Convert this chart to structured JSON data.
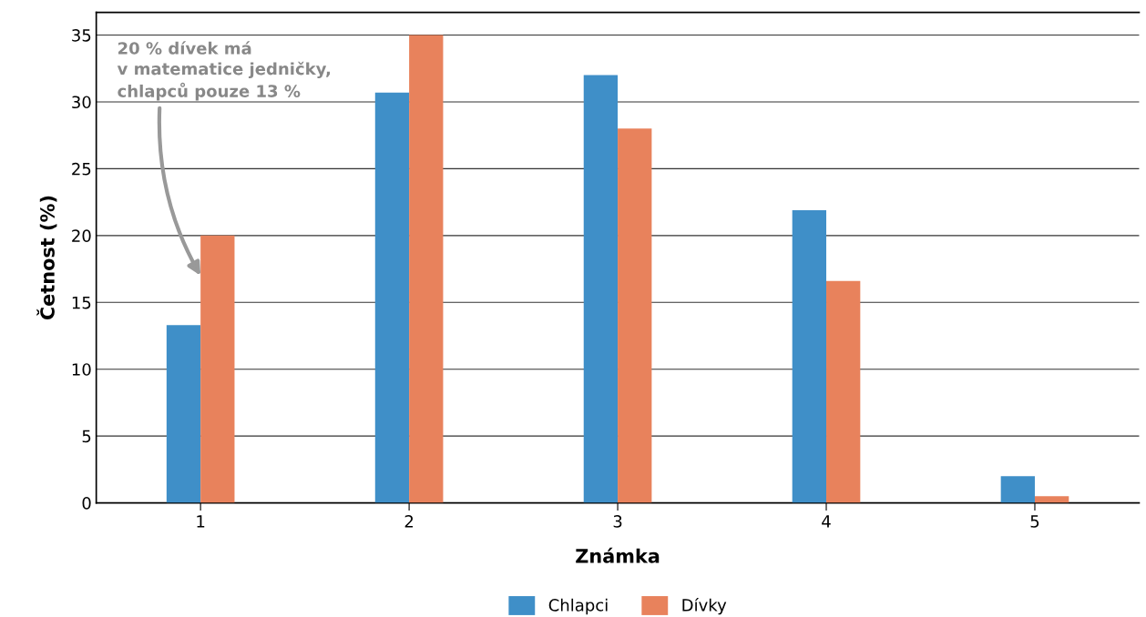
{
  "chart_data": {
    "type": "bar",
    "xlabel": "Známka",
    "ylabel": "Četnost (%)",
    "categories": [
      "1",
      "2",
      "3",
      "4",
      "5"
    ],
    "series": [
      {
        "name": "Chlapci",
        "color": "#3f8fc8",
        "values": [
          13.3,
          30.7,
          32.0,
          21.9,
          2.0
        ]
      },
      {
        "name": "Dívky",
        "color": "#e8825c",
        "values": [
          20.0,
          35.0,
          28.0,
          16.6,
          0.5
        ]
      }
    ],
    "ylim": [
      0,
      36.7
    ],
    "yticks": [
      0,
      5,
      10,
      15,
      20,
      25,
      30,
      35
    ],
    "grid": "y",
    "legend": "bottom",
    "annotations": [
      {
        "text": "20 % dívek má\nv matematice jedničky,\nchlapců pouze 13 %",
        "x": "1",
        "y": 17
      }
    ]
  }
}
